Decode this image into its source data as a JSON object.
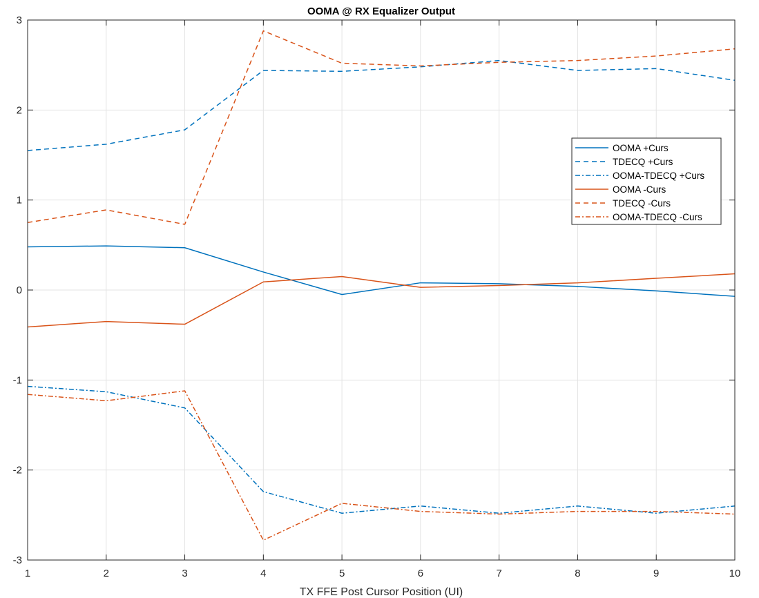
{
  "chart_data": {
    "type": "line",
    "title": "OOMA @ RX Equalizer Output",
    "xlabel": "TX FFE Post Cursor Position (UI)",
    "ylabel": "",
    "xlim": [
      1,
      10
    ],
    "ylim": [
      -3,
      3
    ],
    "x_ticks": [
      "1",
      "2",
      "3",
      "4",
      "5",
      "6",
      "7",
      "8",
      "9",
      "10"
    ],
    "y_ticks": [
      "-3",
      "-2",
      "-1",
      "0",
      "1",
      "2",
      "3"
    ],
    "grid": true,
    "legend_position": "top-right",
    "x": [
      1,
      2,
      3,
      4,
      5,
      6,
      7,
      8,
      9,
      10
    ],
    "series": [
      {
        "name": "OOMA +Curs",
        "color": "#0072BD",
        "style": "solid",
        "values": [
          0.48,
          0.49,
          0.47,
          0.2,
          -0.05,
          0.08,
          0.07,
          0.04,
          -0.01,
          -0.07
        ]
      },
      {
        "name": "TDECQ +Curs",
        "color": "#0072BD",
        "style": "dashed",
        "values": [
          1.55,
          1.62,
          1.78,
          2.44,
          2.43,
          2.48,
          2.55,
          2.44,
          2.46,
          2.33
        ]
      },
      {
        "name": "OOMA-TDECQ +Curs",
        "color": "#0072BD",
        "style": "dashdot",
        "values": [
          -1.07,
          -1.13,
          -1.31,
          -2.24,
          -2.48,
          -2.4,
          -2.48,
          -2.4,
          -2.48,
          -2.4
        ]
      },
      {
        "name": "OOMA -Curs",
        "color": "#D95319",
        "style": "solid",
        "values": [
          -0.41,
          -0.35,
          -0.38,
          0.09,
          0.15,
          0.03,
          0.05,
          0.08,
          0.13,
          0.18
        ]
      },
      {
        "name": "TDECQ -Curs",
        "color": "#D95319",
        "style": "dashed",
        "values": [
          0.75,
          0.89,
          0.73,
          2.88,
          2.52,
          2.49,
          2.53,
          2.55,
          2.6,
          2.68
        ]
      },
      {
        "name": "OOMA-TDECQ -Curs",
        "color": "#D95319",
        "style": "dashdot",
        "values": [
          -1.16,
          -1.23,
          -1.12,
          -2.78,
          -2.37,
          -2.46,
          -2.49,
          -2.46,
          -2.46,
          -2.49
        ]
      }
    ]
  }
}
